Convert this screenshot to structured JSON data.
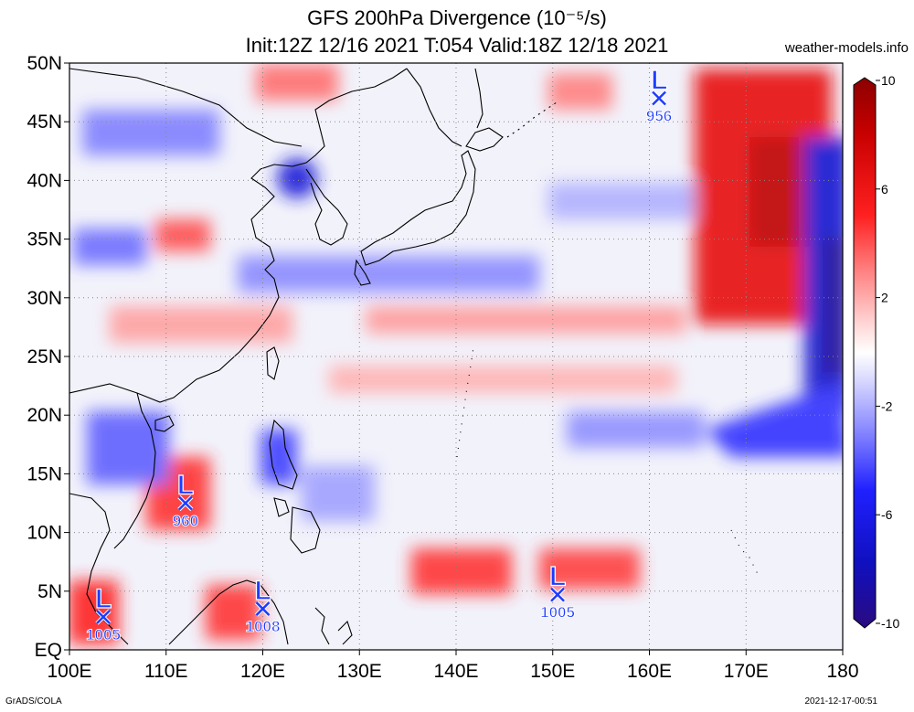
{
  "title": {
    "line1": "GFS 200hPa Divergence (10⁻⁵/s)",
    "line2": "Init:12Z 12/16 2021 T:054 Valid:18Z 12/18 2021"
  },
  "credit": "weather-models.info",
  "footer": {
    "left": "GrADS/COLA",
    "right": "2021-12-17-00:51"
  },
  "map": {
    "lat_range": [
      0,
      50
    ],
    "lon_range": [
      100,
      180
    ],
    "lat_labels": [
      "50N",
      "45N",
      "40N",
      "35N",
      "30N",
      "25N",
      "20N",
      "15N",
      "10N",
      "5N",
      "EQ"
    ],
    "lat_values": [
      50,
      45,
      40,
      35,
      30,
      25,
      20,
      15,
      10,
      5,
      0
    ],
    "lon_labels": [
      "100E",
      "110E",
      "120E",
      "130E",
      "140E",
      "150E",
      "160E",
      "170E",
      "180"
    ],
    "lon_values": [
      100,
      110,
      120,
      130,
      140,
      150,
      160,
      170,
      180
    ],
    "grid": "dotted",
    "fill_colors": {
      "strong_positive": "#c80000",
      "positive": "#ff4040",
      "weak_positive": "#ffc8c8",
      "neutral": "#ffffff",
      "weak_negative": "#c8c8ff",
      "negative": "#3c3cff",
      "strong_negative": "#2a0a96"
    },
    "coastline_color": "#000000",
    "storms": [
      {
        "lon": 161,
        "lat": 47,
        "pressure": "956"
      },
      {
        "lon": 112,
        "lat": 12.5,
        "pressure": "960"
      },
      {
        "lon": 120,
        "lat": 3.5,
        "pressure": "1008"
      },
      {
        "lon": 103.5,
        "lat": 2.8,
        "pressure": "1005"
      },
      {
        "lon": 150.5,
        "lat": 4.7,
        "pressure": "1005"
      }
    ],
    "storm_letter": "L"
  },
  "colorbar": {
    "labels": [
      "10",
      "6",
      "2",
      "-2",
      "-6",
      "-10"
    ],
    "values": [
      10,
      6,
      2,
      -2,
      -6,
      -10
    ],
    "colors": [
      "#8b0000",
      "#c80000",
      "#ff2020",
      "#ff7070",
      "#ffb0b0",
      "#ffe6e6",
      "#ffffff",
      "#e6e6ff",
      "#b0b0ff",
      "#7070ff",
      "#2020ff",
      "#1010c0",
      "#2a0a80"
    ]
  }
}
